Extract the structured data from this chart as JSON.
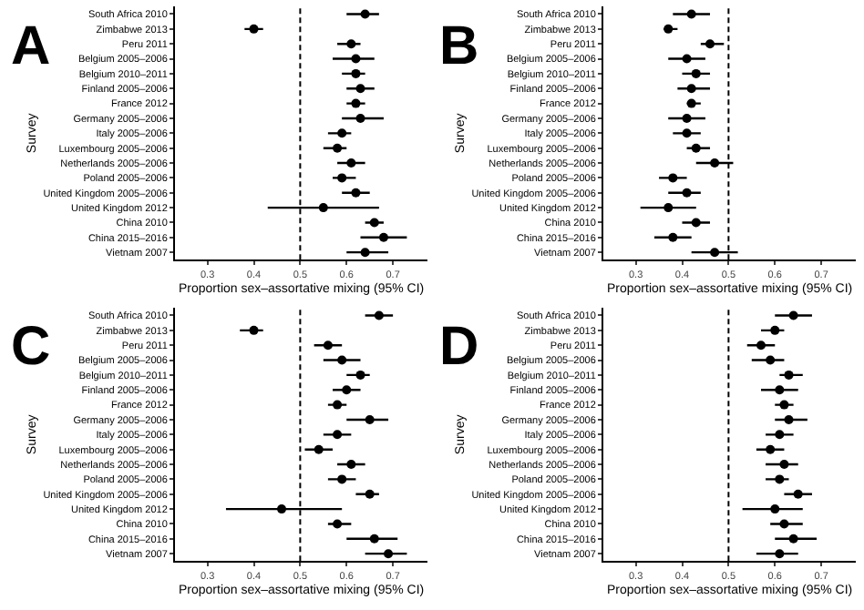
{
  "chart_data": [
    {
      "type": "scatter",
      "orientation": "horizontal",
      "title": "A",
      "xlabel": "Proportion sex–assortative mixing (95% CI)",
      "ylabel": "Survey",
      "marker": "circle",
      "categories": [
        "South Africa 2010",
        "Zimbabwe 2013",
        "Peru 2011",
        "Belgium 2005–2006",
        "Belgium 2010–2011",
        "Finland 2005–2006",
        "France 2012",
        "Germany 2005–2006",
        "Italy 2005–2006",
        "Luxembourg 2005–2006",
        "Netherlands 2005–2006",
        "Poland 2005–2006",
        "United Kingdom 2005–2006",
        "United Kingdom 2012",
        "China 2010",
        "China 2015–2016",
        "Vietnam 2007"
      ],
      "series": [
        {
          "color": "#000000",
          "values": [
            0.64,
            0.4,
            0.61,
            0.62,
            0.62,
            0.63,
            0.62,
            0.63,
            0.59,
            0.58,
            0.61,
            0.59,
            0.62,
            0.55,
            0.66,
            0.68,
            0.64
          ],
          "errors": [
            [
              0.6,
              0.67
            ],
            [
              0.38,
              0.42
            ],
            [
              0.58,
              0.63
            ],
            [
              0.57,
              0.66
            ],
            [
              0.59,
              0.64
            ],
            [
              0.6,
              0.66
            ],
            [
              0.6,
              0.64
            ],
            [
              0.59,
              0.68
            ],
            [
              0.56,
              0.61
            ],
            [
              0.55,
              0.6
            ],
            [
              0.58,
              0.64
            ],
            [
              0.57,
              0.62
            ],
            [
              0.59,
              0.65
            ],
            [
              0.43,
              0.67
            ],
            [
              0.64,
              0.68
            ],
            [
              0.63,
              0.73
            ],
            [
              0.6,
              0.69
            ]
          ]
        }
      ],
      "xlim": [
        0.23,
        0.775
      ],
      "xticks": [
        0.3,
        0.4,
        0.5,
        0.6,
        0.7
      ],
      "ref_lines": [
        {
          "axis": "x",
          "value": 0.5,
          "label": null,
          "color": "#000000",
          "line_style": "dashed"
        }
      ]
    },
    {
      "type": "scatter",
      "orientation": "horizontal",
      "title": "B",
      "xlabel": "Proportion sex–assortative mixing (95% CI)",
      "ylabel": "Survey",
      "marker": "circle",
      "categories": [
        "South Africa 2010",
        "Zimbabwe 2013",
        "Peru 2011",
        "Belgium 2005–2006",
        "Belgium 2010–2011",
        "Finland 2005–2006",
        "France 2012",
        "Germany 2005–2006",
        "Italy 2005–2006",
        "Luxembourg 2005–2006",
        "Netherlands 2005–2006",
        "Poland 2005–2006",
        "United Kingdom 2005–2006",
        "United Kingdom 2012",
        "China 2010",
        "China 2015–2016",
        "Vietnam 2007"
      ],
      "series": [
        {
          "color": "#000000",
          "values": [
            0.42,
            0.37,
            0.46,
            0.41,
            0.43,
            0.42,
            0.42,
            0.41,
            0.41,
            0.43,
            0.47,
            0.38,
            0.41,
            0.37,
            0.43,
            0.38,
            0.47
          ],
          "errors": [
            [
              0.38,
              0.46
            ],
            [
              0.36,
              0.39
            ],
            [
              0.44,
              0.49
            ],
            [
              0.37,
              0.45
            ],
            [
              0.4,
              0.46
            ],
            [
              0.39,
              0.46
            ],
            [
              0.41,
              0.44
            ],
            [
              0.37,
              0.45
            ],
            [
              0.38,
              0.44
            ],
            [
              0.41,
              0.46
            ],
            [
              0.43,
              0.51
            ],
            [
              0.35,
              0.41
            ],
            [
              0.37,
              0.44
            ],
            [
              0.31,
              0.43
            ],
            [
              0.4,
              0.46
            ],
            [
              0.34,
              0.42
            ],
            [
              0.42,
              0.52
            ]
          ]
        }
      ],
      "xlim": [
        0.23,
        0.775
      ],
      "xticks": [
        0.3,
        0.4,
        0.5,
        0.6,
        0.7
      ],
      "ref_lines": [
        {
          "axis": "x",
          "value": 0.5,
          "label": null,
          "color": "#000000",
          "line_style": "dashed"
        }
      ]
    },
    {
      "type": "scatter",
      "orientation": "horizontal",
      "title": "C",
      "xlabel": "Proportion sex–assortative mixing (95% CI)",
      "ylabel": "Survey",
      "marker": "circle",
      "categories": [
        "South Africa 2010",
        "Zimbabwe 2013",
        "Peru 2011",
        "Belgium 2005–2006",
        "Belgium 2010–2011",
        "Finland 2005–2006",
        "France 2012",
        "Germany 2005–2006",
        "Italy 2005–2006",
        "Luxembourg 2005–2006",
        "Netherlands 2005–2006",
        "Poland 2005–2006",
        "United Kingdom 2005–2006",
        "United Kingdom 2012",
        "China 2010",
        "China 2015–2016",
        "Vietnam 2007"
      ],
      "series": [
        {
          "color": "#000000",
          "values": [
            0.67,
            0.4,
            0.56,
            0.59,
            0.63,
            0.6,
            0.58,
            0.65,
            0.58,
            0.54,
            0.61,
            0.59,
            0.65,
            0.46,
            0.58,
            0.66,
            0.69
          ],
          "errors": [
            [
              0.64,
              0.7
            ],
            [
              0.37,
              0.42
            ],
            [
              0.53,
              0.59
            ],
            [
              0.55,
              0.63
            ],
            [
              0.6,
              0.65
            ],
            [
              0.57,
              0.63
            ],
            [
              0.56,
              0.6
            ],
            [
              0.6,
              0.69
            ],
            [
              0.55,
              0.61
            ],
            [
              0.51,
              0.57
            ],
            [
              0.58,
              0.64
            ],
            [
              0.56,
              0.62
            ],
            [
              0.62,
              0.67
            ],
            [
              0.34,
              0.59
            ],
            [
              0.56,
              0.61
            ],
            [
              0.6,
              0.71
            ],
            [
              0.64,
              0.73
            ]
          ]
        }
      ],
      "xlim": [
        0.23,
        0.775
      ],
      "xticks": [
        0.3,
        0.4,
        0.5,
        0.6,
        0.7
      ],
      "ref_lines": [
        {
          "axis": "x",
          "value": 0.5,
          "label": null,
          "color": "#000000",
          "line_style": "dashed"
        }
      ]
    },
    {
      "type": "scatter",
      "orientation": "horizontal",
      "title": "D",
      "xlabel": "Proportion sex–assortative mixing (95% CI)",
      "ylabel": "Survey",
      "marker": "circle",
      "categories": [
        "South Africa 2010",
        "Zimbabwe 2013",
        "Peru 2011",
        "Belgium 2005–2006",
        "Belgium 2010–2011",
        "Finland 2005–2006",
        "France 2012",
        "Germany 2005–2006",
        "Italy 2005–2006",
        "Luxembourg 2005–2006",
        "Netherlands 2005–2006",
        "Poland 2005–2006",
        "United Kingdom 2005–2006",
        "United Kingdom 2012",
        "China 2010",
        "China 2015–2016",
        "Vietnam 2007"
      ],
      "series": [
        {
          "color": "#000000",
          "values": [
            0.64,
            0.6,
            0.57,
            0.59,
            0.63,
            0.61,
            0.62,
            0.63,
            0.61,
            0.59,
            0.62,
            0.61,
            0.65,
            0.6,
            0.62,
            0.64,
            0.61
          ],
          "errors": [
            [
              0.6,
              0.68
            ],
            [
              0.57,
              0.62
            ],
            [
              0.54,
              0.6
            ],
            [
              0.55,
              0.62
            ],
            [
              0.61,
              0.66
            ],
            [
              0.57,
              0.65
            ],
            [
              0.6,
              0.64
            ],
            [
              0.6,
              0.67
            ],
            [
              0.58,
              0.64
            ],
            [
              0.56,
              0.62
            ],
            [
              0.58,
              0.65
            ],
            [
              0.58,
              0.63
            ],
            [
              0.62,
              0.68
            ],
            [
              0.53,
              0.66
            ],
            [
              0.59,
              0.66
            ],
            [
              0.6,
              0.69
            ],
            [
              0.56,
              0.65
            ]
          ]
        }
      ],
      "xlim": [
        0.23,
        0.775
      ],
      "xticks": [
        0.3,
        0.4,
        0.5,
        0.6,
        0.7
      ],
      "ref_lines": [
        {
          "axis": "x",
          "value": 0.5,
          "label": null,
          "color": "#000000",
          "line_style": "dashed"
        }
      ]
    }
  ]
}
